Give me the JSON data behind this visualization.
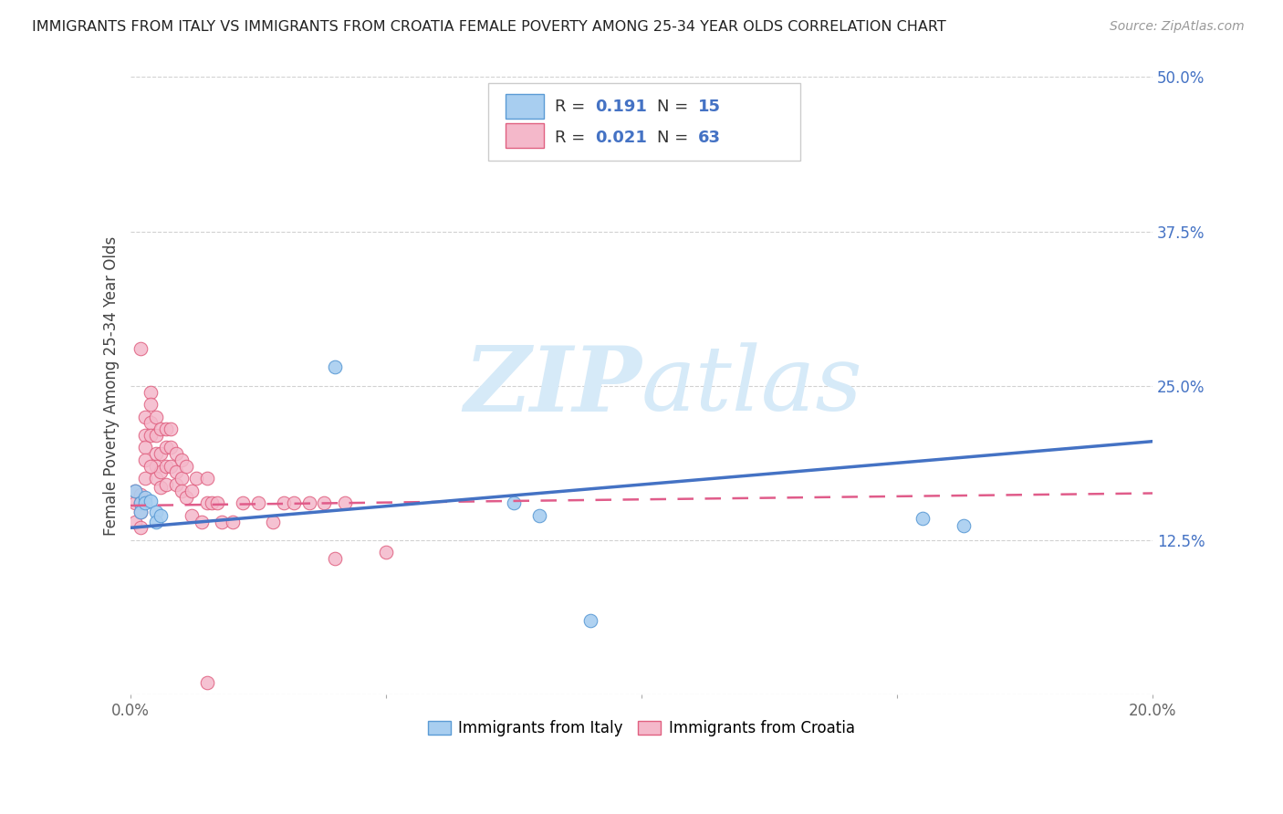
{
  "title": "IMMIGRANTS FROM ITALY VS IMMIGRANTS FROM CROATIA FEMALE POVERTY AMONG 25-34 YEAR OLDS CORRELATION CHART",
  "source": "Source: ZipAtlas.com",
  "ylabel": "Female Poverty Among 25-34 Year Olds",
  "xlim": [
    0.0,
    0.2
  ],
  "ylim": [
    0.0,
    0.5
  ],
  "xtick_vals": [
    0.0,
    0.05,
    0.1,
    0.15,
    0.2
  ],
  "xtick_labels": [
    "0.0%",
    "",
    "",
    "",
    "20.0%"
  ],
  "yticks_right": [
    0.0,
    0.125,
    0.25,
    0.375,
    0.5
  ],
  "ytick_labels_right": [
    "",
    "12.5%",
    "25.0%",
    "37.5%",
    "50.0%"
  ],
  "legend_italy_label": "Immigrants from Italy",
  "legend_croatia_label": "Immigrants from Croatia",
  "italy_R": 0.191,
  "italy_N": 15,
  "croatia_R": 0.021,
  "croatia_N": 63,
  "italy_color": "#a8cef0",
  "italy_edge_color": "#5b9bd5",
  "italy_line_color": "#4472c4",
  "croatia_color": "#f4b8ca",
  "croatia_edge_color": "#e06080",
  "croatia_line_color": "#e05c8a",
  "watermark_color": "#d6eaf8",
  "background_color": "#ffffff",
  "grid_color": "#cccccc",
  "italy_x": [
    0.001,
    0.002,
    0.002,
    0.003,
    0.003,
    0.004,
    0.005,
    0.005,
    0.006,
    0.04,
    0.075,
    0.08,
    0.09,
    0.155,
    0.163
  ],
  "italy_y": [
    0.165,
    0.155,
    0.148,
    0.16,
    0.155,
    0.157,
    0.148,
    0.14,
    0.145,
    0.265,
    0.155,
    0.145,
    0.06,
    0.143,
    0.137
  ],
  "croatia_x": [
    0.001,
    0.001,
    0.001,
    0.002,
    0.002,
    0.002,
    0.002,
    0.003,
    0.003,
    0.003,
    0.003,
    0.003,
    0.004,
    0.004,
    0.004,
    0.004,
    0.005,
    0.005,
    0.005,
    0.005,
    0.005,
    0.006,
    0.006,
    0.006,
    0.006,
    0.007,
    0.007,
    0.007,
    0.007,
    0.008,
    0.008,
    0.008,
    0.009,
    0.009,
    0.009,
    0.01,
    0.01,
    0.01,
    0.011,
    0.011,
    0.012,
    0.012,
    0.013,
    0.014,
    0.015,
    0.015,
    0.016,
    0.017,
    0.018,
    0.02,
    0.022,
    0.025,
    0.028,
    0.03,
    0.032,
    0.035,
    0.038,
    0.04,
    0.042,
    0.05,
    0.002,
    0.004,
    0.015
  ],
  "croatia_y": [
    0.165,
    0.155,
    0.14,
    0.162,
    0.155,
    0.148,
    0.135,
    0.225,
    0.21,
    0.2,
    0.19,
    0.175,
    0.245,
    0.235,
    0.22,
    0.21,
    0.21,
    0.225,
    0.195,
    0.185,
    0.175,
    0.195,
    0.215,
    0.18,
    0.168,
    0.2,
    0.215,
    0.185,
    0.17,
    0.215,
    0.2,
    0.185,
    0.195,
    0.18,
    0.17,
    0.19,
    0.175,
    0.165,
    0.185,
    0.16,
    0.165,
    0.145,
    0.175,
    0.14,
    0.175,
    0.155,
    0.155,
    0.155,
    0.14,
    0.14,
    0.155,
    0.155,
    0.14,
    0.155,
    0.155,
    0.155,
    0.155,
    0.11,
    0.155,
    0.115,
    0.28,
    0.185,
    0.01
  ]
}
